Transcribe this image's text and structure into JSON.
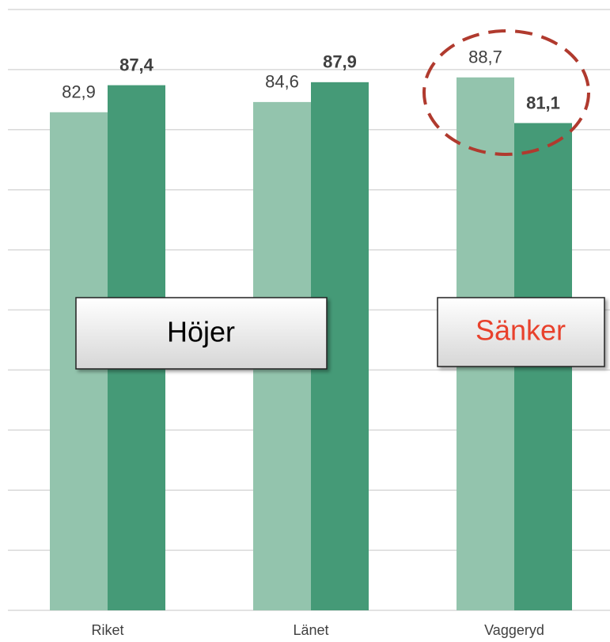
{
  "chart_data": {
    "type": "bar",
    "categories": [
      "Riket",
      "Länet",
      "Vaggeryd"
    ],
    "series": [
      {
        "color": "#93c4ad",
        "values": [
          82.9,
          84.6,
          88.7
        ],
        "value_labels": [
          "82,9",
          "84,6",
          "88,7"
        ]
      },
      {
        "color": "#459a77",
        "values": [
          87.4,
          87.9,
          81.1
        ],
        "value_labels": [
          "87,4",
          "87,9",
          "81,1"
        ],
        "bold": true
      }
    ],
    "ylim": [
      0,
      100
    ],
    "yticks": [
      0,
      10,
      20,
      30,
      40,
      50,
      60,
      70,
      80,
      90,
      100
    ],
    "grid": true,
    "annotations": [
      {
        "text": "Höjer",
        "color": "#000000"
      },
      {
        "text": "Sänker",
        "color": "#e8412c"
      }
    ]
  }
}
